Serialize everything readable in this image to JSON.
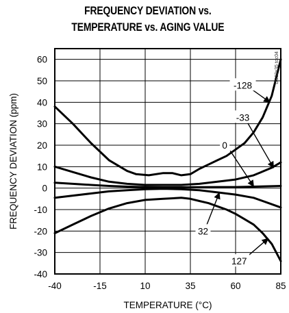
{
  "chart_data": {
    "type": "line",
    "title_line1": "FREQUENCY DEVIATION vs.",
    "title_line2": "TEMPERATURE vs. AGING VALUE",
    "xlabel": "TEMPERATURE (°C)",
    "ylabel": "FREQUENCY DEVIATION (ppm)",
    "watermark": "DS32x35 toc04",
    "xlim": [
      -40,
      85
    ],
    "ylim": [
      -40,
      65
    ],
    "grid": true,
    "xticks": [
      -40,
      -15,
      10,
      35,
      60,
      85
    ],
    "yticks": [
      -40,
      -30,
      -20,
      -10,
      0,
      10,
      20,
      30,
      40,
      50,
      60
    ],
    "series": [
      {
        "name": "-128",
        "points": [
          [
            -40,
            38
          ],
          [
            -30,
            30
          ],
          [
            -20,
            21
          ],
          [
            -10,
            13
          ],
          [
            0,
            8
          ],
          [
            5,
            6.5
          ],
          [
            12,
            6
          ],
          [
            20,
            7
          ],
          [
            25,
            7
          ],
          [
            30,
            6
          ],
          [
            35,
            6.5
          ],
          [
            40,
            9
          ],
          [
            45,
            11
          ],
          [
            50,
            13
          ],
          [
            55,
            15
          ],
          [
            60,
            18
          ],
          [
            65,
            21
          ],
          [
            70,
            26
          ],
          [
            75,
            33
          ],
          [
            80,
            43
          ],
          [
            85,
            60
          ]
        ]
      },
      {
        "name": "-33",
        "points": [
          [
            -40,
            10
          ],
          [
            -30,
            7.5
          ],
          [
            -20,
            5
          ],
          [
            -10,
            3
          ],
          [
            0,
            2
          ],
          [
            10,
            1.5
          ],
          [
            20,
            1.5
          ],
          [
            30,
            1.5
          ],
          [
            40,
            2
          ],
          [
            50,
            3
          ],
          [
            60,
            4
          ],
          [
            70,
            6
          ],
          [
            80,
            9.5
          ],
          [
            85,
            12
          ]
        ]
      },
      {
        "name": "0",
        "points": [
          [
            -40,
            2.5
          ],
          [
            -30,
            2
          ],
          [
            -20,
            1.5
          ],
          [
            -10,
            1
          ],
          [
            0,
            0.7
          ],
          [
            10,
            0.5
          ],
          [
            20,
            0.4
          ],
          [
            35,
            0.4
          ],
          [
            50,
            0.5
          ],
          [
            60,
            0.5
          ],
          [
            70,
            0.7
          ],
          [
            85,
            1
          ]
        ]
      },
      {
        "name": "32",
        "points": [
          [
            -40,
            -4.5
          ],
          [
            -30,
            -3.5
          ],
          [
            -20,
            -2.5
          ],
          [
            -10,
            -1.5
          ],
          [
            0,
            -1
          ],
          [
            10,
            -0.5
          ],
          [
            20,
            -0.3
          ],
          [
            30,
            -0.5
          ],
          [
            40,
            -1
          ],
          [
            50,
            -2
          ],
          [
            60,
            -3
          ],
          [
            70,
            -4.5
          ],
          [
            80,
            -7.5
          ],
          [
            85,
            -9
          ]
        ]
      },
      {
        "name": "127",
        "points": [
          [
            -40,
            -21
          ],
          [
            -30,
            -17
          ],
          [
            -20,
            -13
          ],
          [
            -10,
            -9.5
          ],
          [
            0,
            -7
          ],
          [
            10,
            -5.5
          ],
          [
            20,
            -5
          ],
          [
            30,
            -4.5
          ],
          [
            35,
            -5
          ],
          [
            40,
            -6
          ],
          [
            45,
            -7
          ],
          [
            50,
            -8.5
          ],
          [
            55,
            -10
          ],
          [
            60,
            -12
          ],
          [
            65,
            -14.5
          ],
          [
            70,
            -17
          ],
          [
            75,
            -21
          ],
          [
            80,
            -26
          ],
          [
            85,
            -34
          ]
        ]
      }
    ],
    "curve_labels": [
      {
        "text": "-128",
        "x": 64,
        "y": 48,
        "arrow_to": [
          79,
          40
        ]
      },
      {
        "text": "-33",
        "x": 64,
        "y": 33,
        "arrow_to": [
          81,
          9.5
        ]
      },
      {
        "text": "0",
        "x": 54,
        "y": 20,
        "arrow_to": [
          70,
          0.8
        ]
      },
      {
        "text": "32",
        "x": 42,
        "y": -20,
        "arrow_to": [
          51,
          -2.2
        ]
      },
      {
        "text": "127",
        "x": 62,
        "y": -34,
        "arrow_to": [
          78,
          -23.5
        ]
      }
    ]
  }
}
